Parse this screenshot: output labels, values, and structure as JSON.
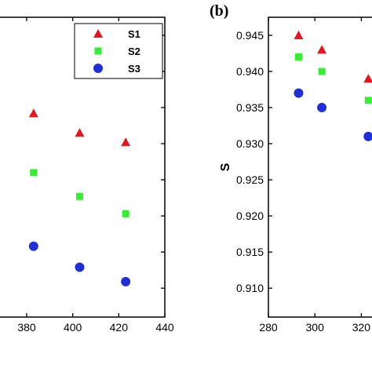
{
  "chart_data": [
    {
      "type": "scatter",
      "panel_label": "",
      "xlabel": "",
      "ylabel": "",
      "xlim": [
        365,
        440
      ],
      "ylim": [
        0.906,
        0.9475
      ],
      "xticks": [
        380,
        400,
        420,
        440
      ],
      "yticks": [],
      "grid": false,
      "legend": {
        "placement": "top-right",
        "entries": [
          {
            "name": "S1",
            "color": "#e8141c",
            "marker": "triangle"
          },
          {
            "name": "S2",
            "color": "#33ee33",
            "marker": "square"
          },
          {
            "name": "S3",
            "color": "#1f2fd8",
            "marker": "circle"
          }
        ]
      },
      "series": [
        {
          "name": "S1",
          "x": [
            383,
            403,
            423
          ],
          "y": [
            0.9342,
            0.9315,
            0.9302
          ]
        },
        {
          "name": "S2",
          "x": [
            383,
            403,
            423
          ],
          "y": [
            0.926,
            0.9227,
            0.9203
          ]
        },
        {
          "name": "S3",
          "x": [
            383,
            403,
            423
          ],
          "y": [
            0.9158,
            0.9129,
            0.9109
          ]
        }
      ]
    },
    {
      "type": "scatter",
      "panel_label": "(b)",
      "xlabel": "",
      "ylabel": "S",
      "xlim": [
        280,
        330
      ],
      "ylim": [
        0.906,
        0.9475
      ],
      "xticks": [
        280,
        300,
        320
      ],
      "yticks": [
        0.91,
        0.915,
        0.92,
        0.925,
        0.93,
        0.935,
        0.94,
        0.945
      ],
      "ytick_labels": [
        "0.910",
        "0.915",
        "0.920",
        "0.925",
        "0.930",
        "0.935",
        "0.940",
        "0.945"
      ],
      "grid": false,
      "series": [
        {
          "name": "S1",
          "x": [
            293,
            303,
            323
          ],
          "y": [
            0.945,
            0.943,
            0.939
          ]
        },
        {
          "name": "S2",
          "x": [
            293,
            303,
            323
          ],
          "y": [
            0.942,
            0.94,
            0.936
          ]
        },
        {
          "name": "S3",
          "x": [
            293,
            303,
            323
          ],
          "y": [
            0.937,
            0.935,
            0.931
          ]
        }
      ]
    }
  ]
}
